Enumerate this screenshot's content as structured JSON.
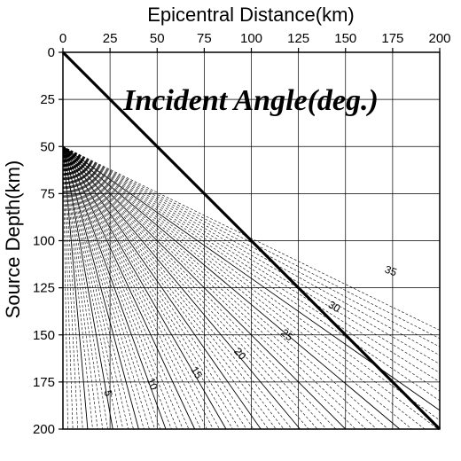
{
  "chart_data": {
    "type": "line",
    "title": "Incident Angle(deg.)",
    "xlabel": "Epicentral Distance(km)",
    "ylabel": "Source Depth(km)",
    "xlim": [
      0,
      200
    ],
    "ylim": [
      200,
      0
    ],
    "y_inverted": true,
    "x_ticks": [
      "0",
      "25",
      "50",
      "75",
      "100",
      "125",
      "150",
      "175",
      "200"
    ],
    "y_ticks": [
      "0",
      "25",
      "50",
      "75",
      "100",
      "125",
      "150",
      "175",
      "200"
    ],
    "grid": true,
    "series": [
      {
        "style": "thick-solid",
        "color": "#000000",
        "x": [
          0,
          200
        ],
        "y": [
          0,
          200
        ]
      }
    ],
    "contour_labels": [
      {
        "text": "5",
        "x": 24,
        "y": 181
      },
      {
        "text": "10",
        "x": 47.5,
        "y": 176
      },
      {
        "text": "15",
        "x": 71,
        "y": 170
      },
      {
        "text": "20",
        "x": 94,
        "y": 160
      },
      {
        "text": "25",
        "x": 119,
        "y": 150
      },
      {
        "text": "30",
        "x": 144,
        "y": 135
      },
      {
        "text": "35",
        "x": 174,
        "y": 116
      }
    ],
    "contour_lines": {
      "source_depth_start": 50,
      "angles_solid": [
        5,
        10,
        15,
        20,
        25,
        30,
        35,
        40,
        45,
        50,
        55
      ],
      "angle_step_dashed": 1,
      "angle_max": 64,
      "color": "#000000"
    }
  }
}
